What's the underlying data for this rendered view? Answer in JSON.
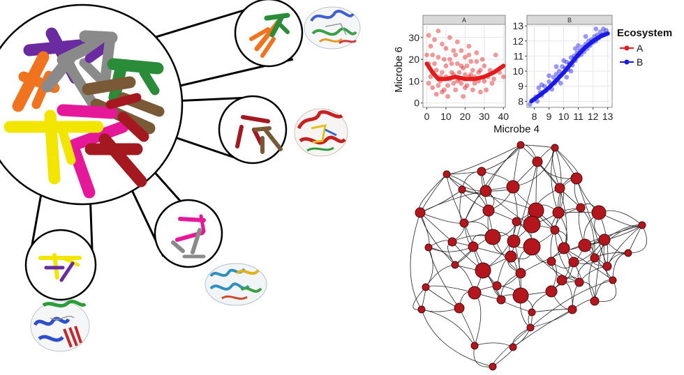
{
  "colors": {
    "purple": "#6a2aa0",
    "orange": "#f0731f",
    "gray": "#8a8a8a",
    "green": "#2a8c38",
    "brown": "#7a5a36",
    "magenta": "#e6189a",
    "yellow": "#f2e600",
    "darkred": "#a3191f",
    "series_a": "#e41a1c",
    "series_b": "#1a1ae6",
    "node": "#b3161c"
  },
  "icons": {
    "protein_1": "protein-structure-icon",
    "protein_2": "protein-structure-icon",
    "protein_3": "protein-structure-icon",
    "protein_4": "protein-structure-icon"
  },
  "chart_data": {
    "type": "scatter",
    "xlabel": "Microbe 4",
    "ylabel": "Microbe 6",
    "legend": {
      "title": "Ecosystem",
      "position": "right",
      "entries": [
        "A",
        "B"
      ]
    },
    "grid": true,
    "panels": [
      {
        "strip": "A",
        "xlim": [
          -2,
          41
        ],
        "ylim": [
          -2,
          36
        ],
        "xticks": [
          0,
          10,
          20,
          30,
          40
        ],
        "yticks": [
          0,
          10,
          20,
          30
        ],
        "series": [
          {
            "name": "A",
            "points": [
              [
                1,
                31
              ],
              [
                2,
                26
              ],
              [
                3,
                22
              ],
              [
                4,
                29
              ],
              [
                5,
                15
              ],
              [
                6,
                33
              ],
              [
                7,
                12
              ],
              [
                8,
                27
              ],
              [
                9,
                20
              ],
              [
                10,
                25
              ],
              [
                11,
                8
              ],
              [
                12,
                30
              ],
              [
                13,
                14
              ],
              [
                14,
                9
              ],
              [
                15,
                22
              ],
              [
                16,
                28
              ],
              [
                17,
                11
              ],
              [
                18,
                24
              ],
              [
                19,
                16
              ],
              [
                20,
                13
              ],
              [
                21,
                8
              ],
              [
                22,
                26
              ],
              [
                23,
                19
              ],
              [
                24,
                6
              ],
              [
                25,
                12
              ],
              [
                26,
                23
              ],
              [
                27,
                10
              ],
              [
                28,
                15
              ],
              [
                30,
                17
              ],
              [
                32,
                12
              ],
              [
                34,
                9
              ],
              [
                36,
                22
              ],
              [
                38,
                14
              ],
              [
                40,
                12
              ],
              [
                3,
                7
              ],
              [
                5,
                4
              ],
              [
                7,
                10
              ],
              [
                9,
                6
              ],
              [
                11,
                3
              ],
              [
                13,
                18
              ],
              [
                15,
                6
              ],
              [
                17,
                14
              ],
              [
                19,
                3
              ],
              [
                21,
                17
              ],
              [
                23,
                13
              ],
              [
                25,
                9
              ],
              [
                4,
                18
              ],
              [
                6,
                21
              ],
              [
                8,
                14
              ],
              [
                10,
                17
              ],
              [
                12,
                11
              ],
              [
                14,
                13
              ],
              [
                16,
                18
              ],
              [
                18,
                9
              ],
              [
                20,
                21
              ],
              [
                22,
                12
              ],
              [
                24,
                15
              ],
              [
                26,
                19
              ],
              [
                28,
                5
              ],
              [
                30,
                10
              ],
              [
                2,
                12
              ],
              [
                1,
                18
              ],
              [
                0,
                22
              ],
              [
                1,
                9
              ],
              [
                3,
                14
              ],
              [
                6,
                8
              ],
              [
                8,
                5
              ],
              [
                10,
                12
              ],
              [
                12,
                20
              ],
              [
                14,
                24
              ],
              [
                16,
                10
              ],
              [
                18,
                17
              ],
              [
                20,
                7
              ],
              [
                22,
                22
              ],
              [
                24,
                11
              ],
              [
                27,
                14
              ],
              [
                29,
                20
              ],
              [
                31,
                6
              ],
              [
                33,
                15
              ],
              [
                35,
                11
              ]
            ],
            "trend": [
              [
                0,
                18
              ],
              [
                3,
                14
              ],
              [
                6,
                11
              ],
              [
                10,
                11
              ],
              [
                15,
                12
              ],
              [
                20,
                11
              ],
              [
                25,
                11
              ],
              [
                30,
                12
              ],
              [
                35,
                14
              ],
              [
                40,
                17
              ]
            ]
          }
        ]
      },
      {
        "strip": "B",
        "xlim": [
          7.5,
          13.3
        ],
        "ylim": [
          7.6,
          13.1
        ],
        "xticks": [
          8,
          9,
          10,
          11,
          12,
          13
        ],
        "yticks": [
          8,
          9,
          10,
          11,
          12,
          13
        ],
        "series": [
          {
            "name": "B",
            "points": [
              [
                7.7,
                7.8
              ],
              [
                7.9,
                8.1
              ],
              [
                8.1,
                8.3
              ],
              [
                8.2,
                8.0
              ],
              [
                8.4,
                8.6
              ],
              [
                8.5,
                8.4
              ],
              [
                8.7,
                9.0
              ],
              [
                8.8,
                8.7
              ],
              [
                9.0,
                9.3
              ],
              [
                9.1,
                9.0
              ],
              [
                9.2,
                8.8
              ],
              [
                9.3,
                9.6
              ],
              [
                9.4,
                9.2
              ],
              [
                9.5,
                9.8
              ],
              [
                9.6,
                9.4
              ],
              [
                9.7,
                10.0
              ],
              [
                9.8,
                9.7
              ],
              [
                9.9,
                10.3
              ],
              [
                10.0,
                9.9
              ],
              [
                10.1,
                10.2
              ],
              [
                10.2,
                10.6
              ],
              [
                10.3,
                10.1
              ],
              [
                10.4,
                10.5
              ],
              [
                10.5,
                10.9
              ],
              [
                10.6,
                10.4
              ],
              [
                10.7,
                11.0
              ],
              [
                10.8,
                10.7
              ],
              [
                10.9,
                11.2
              ],
              [
                11.0,
                11.0
              ],
              [
                11.1,
                11.4
              ],
              [
                11.2,
                11.1
              ],
              [
                11.3,
                11.6
              ],
              [
                11.4,
                11.3
              ],
              [
                11.5,
                11.8
              ],
              [
                11.6,
                11.5
              ],
              [
                11.7,
                12.0
              ],
              [
                11.8,
                11.7
              ],
              [
                11.9,
                12.1
              ],
              [
                12.0,
                11.9
              ],
              [
                12.1,
                12.3
              ],
              [
                12.2,
                12.0
              ],
              [
                12.3,
                12.4
              ],
              [
                12.4,
                12.2
              ],
              [
                12.5,
                12.6
              ],
              [
                12.6,
                12.4
              ],
              [
                12.7,
                12.8
              ],
              [
                12.8,
                12.5
              ],
              [
                12.9,
                12.7
              ],
              [
                9.5,
                10.3
              ],
              [
                10.0,
                10.7
              ],
              [
                10.5,
                10.0
              ],
              [
                11.0,
                11.7
              ],
              [
                9.0,
                9.7
              ],
              [
                8.5,
                9.1
              ],
              [
                11.5,
                12.3
              ],
              [
                12.2,
                12.8
              ],
              [
                8.3,
                8.9
              ],
              [
                10.8,
                11.5
              ],
              [
                9.8,
                9.2
              ],
              [
                10.2,
                9.6
              ]
            ],
            "trend": [
              [
                7.8,
                8.0
              ],
              [
                8.5,
                8.5
              ],
              [
                9.0,
                8.9
              ],
              [
                9.5,
                9.4
              ],
              [
                10.0,
                9.9
              ],
              [
                10.5,
                10.5
              ],
              [
                11.0,
                11.1
              ],
              [
                11.5,
                11.6
              ],
              [
                12.0,
                12.0
              ],
              [
                12.5,
                12.3
              ],
              [
                13.0,
                12.5
              ]
            ]
          }
        ]
      }
    ]
  }
}
